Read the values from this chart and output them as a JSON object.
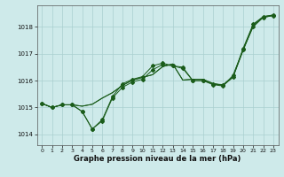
{
  "xlabel": "Graphe pression niveau de la mer (hPa)",
  "background_color": "#ceeaea",
  "grid_color": "#aacfcf",
  "line_color": "#1a5c1a",
  "xlim": [
    -0.5,
    23.5
  ],
  "ylim": [
    1013.6,
    1018.8
  ],
  "yticks": [
    1014,
    1015,
    1016,
    1017,
    1018
  ],
  "xticks": [
    0,
    1,
    2,
    3,
    4,
    5,
    6,
    7,
    8,
    9,
    10,
    11,
    12,
    13,
    14,
    15,
    16,
    17,
    18,
    19,
    20,
    21,
    22,
    23
  ],
  "lines": [
    {
      "y": [
        1015.15,
        1015.0,
        1015.1,
        1015.1,
        1014.85,
        1014.2,
        1014.5,
        1015.35,
        1015.75,
        1015.95,
        1016.05,
        1016.4,
        1016.6,
        1016.55,
        1016.5,
        1016.0,
        1016.0,
        1015.85,
        1015.8,
        1016.2,
        1017.15,
        1018.0,
        1018.35,
        1018.42
      ],
      "marker": true
    },
    {
      "y": [
        1015.15,
        1015.0,
        1015.1,
        1015.1,
        1014.85,
        1014.2,
        1014.55,
        1015.4,
        1015.88,
        1016.05,
        1016.15,
        1016.55,
        1016.65,
        1016.55,
        1016.45,
        1016.0,
        1016.0,
        1015.88,
        1015.85,
        1016.15,
        1017.2,
        1018.1,
        1018.38,
        1018.44
      ],
      "marker": true
    },
    {
      "y": [
        1015.15,
        1015.0,
        1015.1,
        1015.1,
        1015.05,
        1015.12,
        1015.35,
        1015.55,
        1015.82,
        1016.02,
        1016.12,
        1016.22,
        1016.52,
        1016.62,
        1016.02,
        1016.05,
        1016.05,
        1015.9,
        1015.82,
        1016.15,
        1017.12,
        1018.05,
        1018.35,
        1018.42
      ],
      "marker": false
    },
    {
      "y": [
        1015.15,
        1015.0,
        1015.1,
        1015.1,
        1015.05,
        1015.12,
        1015.35,
        1015.55,
        1015.82,
        1016.02,
        1016.12,
        1016.22,
        1016.52,
        1016.62,
        1016.02,
        1016.05,
        1016.05,
        1015.88,
        1015.82,
        1016.12,
        1017.15,
        1018.07,
        1018.38,
        1018.44
      ],
      "marker": false
    }
  ]
}
